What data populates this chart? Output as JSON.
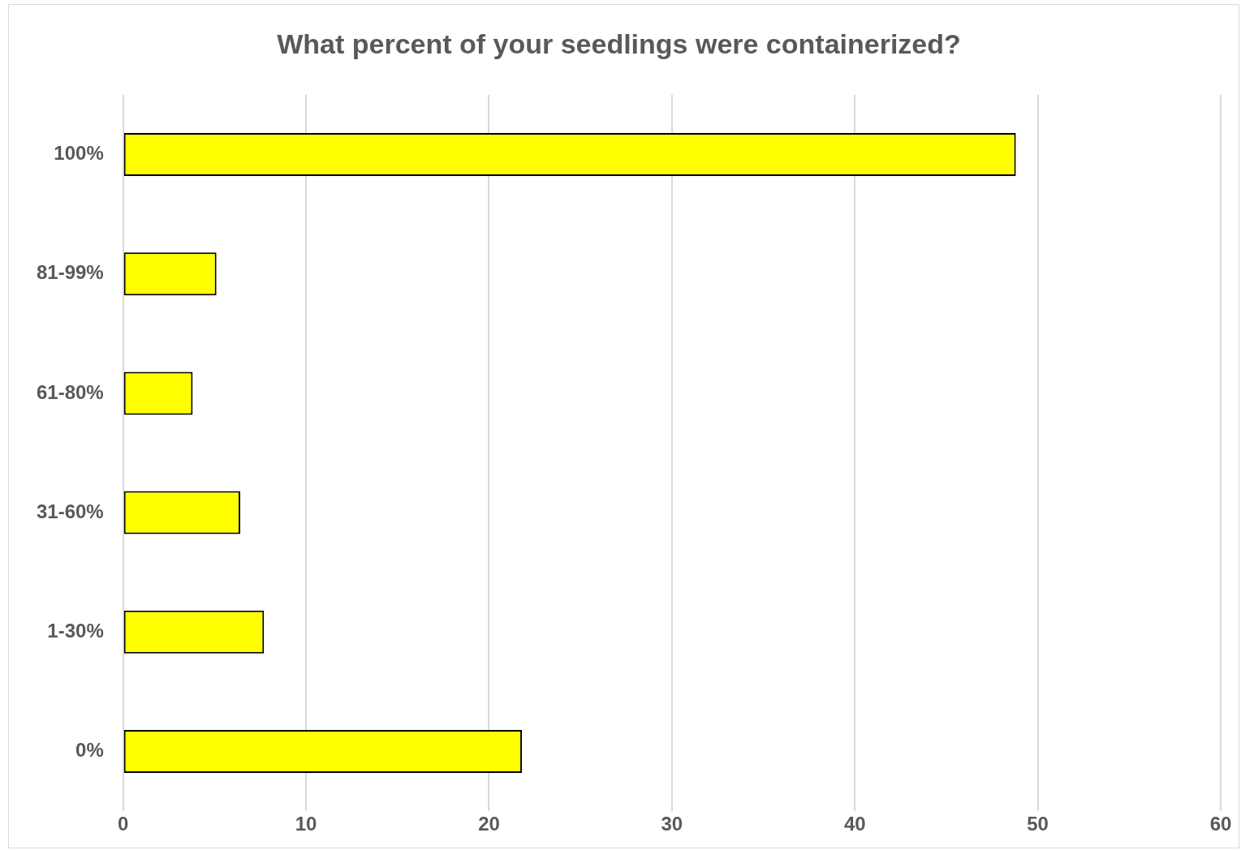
{
  "chart_data": {
    "type": "bar",
    "orientation": "horizontal",
    "title": "What percent of your seedlings were containerized?",
    "categories": [
      "100%",
      "81-99%",
      "61-80%",
      "31-60%",
      "1-30%",
      "0%"
    ],
    "values": [
      48.8,
      5.1,
      3.8,
      6.4,
      7.7,
      21.8
    ],
    "color": "#ffff00",
    "xlim": [
      0,
      60
    ],
    "xticks": [
      0,
      10,
      20,
      30,
      40,
      50,
      60
    ],
    "grid": "x",
    "legend": false
  }
}
